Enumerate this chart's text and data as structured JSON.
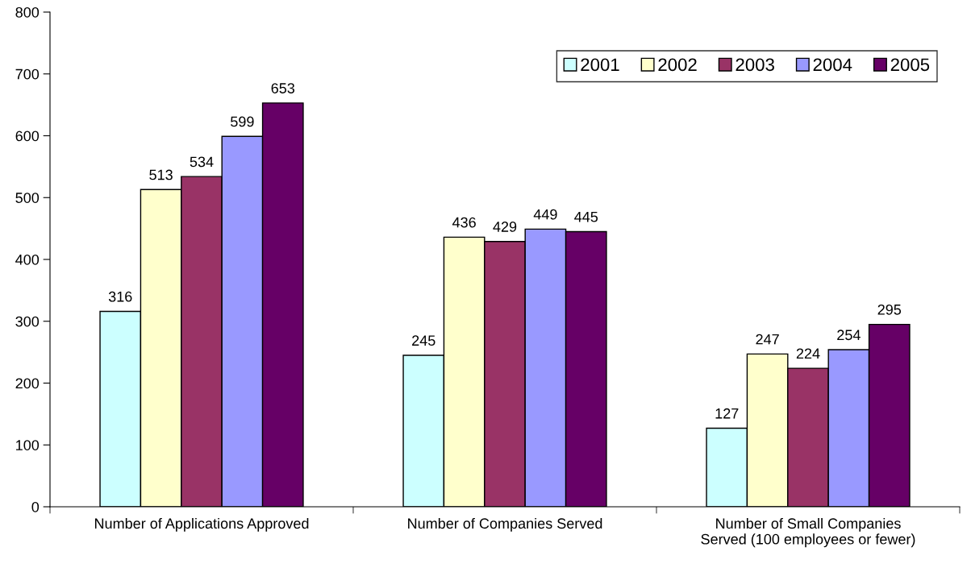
{
  "chart_data": {
    "type": "bar",
    "categories": [
      "Number of Applications Approved",
      "Number of Companies Served",
      "Number of Small Companies\nServed (100 employees or fewer)"
    ],
    "series": [
      {
        "name": "2001",
        "color": "#ccffff",
        "values": [
          316,
          245,
          127
        ]
      },
      {
        "name": "2002",
        "color": "#ffffcc",
        "values": [
          513,
          436,
          247
        ]
      },
      {
        "name": "2003",
        "color": "#993366",
        "values": [
          534,
          429,
          224
        ]
      },
      {
        "name": "2004",
        "color": "#9999ff",
        "values": [
          599,
          449,
          254
        ]
      },
      {
        "name": "2005",
        "color": "#660066",
        "values": [
          653,
          445,
          295
        ]
      }
    ],
    "ylim": [
      0,
      800
    ],
    "yticks": [
      0,
      100,
      200,
      300,
      400,
      500,
      600,
      700,
      800
    ],
    "data_labels": true,
    "legend": "top right",
    "grid": false
  }
}
